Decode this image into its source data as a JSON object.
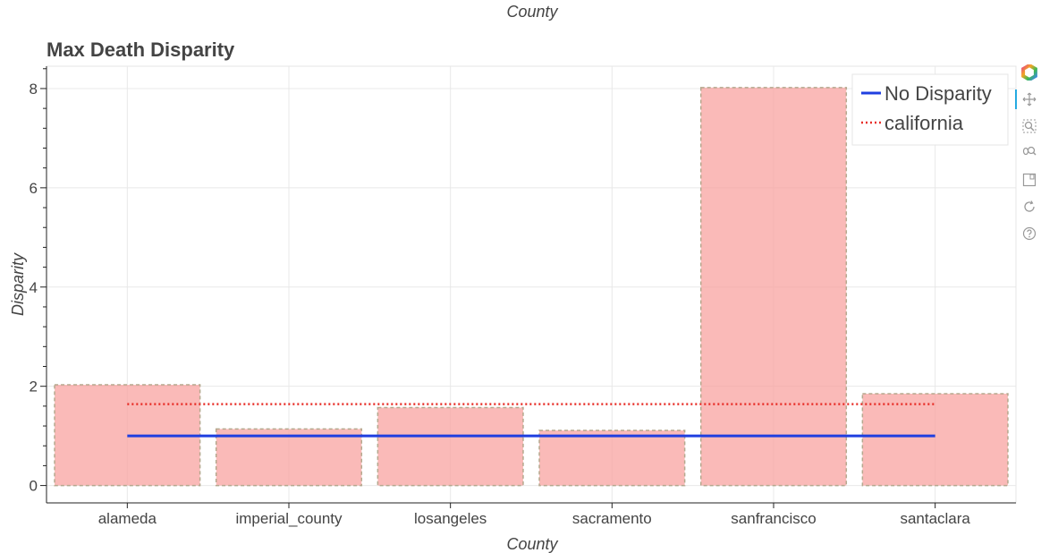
{
  "top_cut_label": "County",
  "toolbar": {
    "tools": [
      {
        "name": "bokeh-logo-icon"
      },
      {
        "name": "pan-tool-icon",
        "active": true
      },
      {
        "name": "box-zoom-tool-icon"
      },
      {
        "name": "wheel-zoom-tool-icon"
      },
      {
        "name": "save-tool-icon"
      },
      {
        "name": "reset-tool-icon"
      },
      {
        "name": "help-tool-icon"
      }
    ]
  },
  "chart_data": {
    "type": "bar",
    "title": "Max Death Disparity",
    "xlabel": "County",
    "ylabel": "Disparity",
    "categories": [
      "alameda",
      "imperial_county",
      "losangeles",
      "sacramento",
      "sanfrancisco",
      "santaclara"
    ],
    "values": [
      2.03,
      1.14,
      1.57,
      1.11,
      8.02,
      1.85
    ],
    "ylim": [
      -0.35,
      8.45
    ],
    "yticks": [
      0,
      2,
      4,
      6,
      8
    ],
    "ytick_labels": [
      "0",
      "2",
      "4",
      "6",
      "8"
    ],
    "bar_color": "#f8a09c",
    "bar_border_color": "#b5a88e",
    "grid": true,
    "lines": [
      {
        "name": "No Disparity",
        "value": 1.0,
        "color": "#1f3fe0",
        "style": "solid"
      },
      {
        "name": "california",
        "value": 1.64,
        "color": "#e8302a",
        "style": "dotted"
      }
    ],
    "legend": {
      "position": "top-right",
      "entries": [
        "No Disparity",
        "california"
      ]
    }
  }
}
